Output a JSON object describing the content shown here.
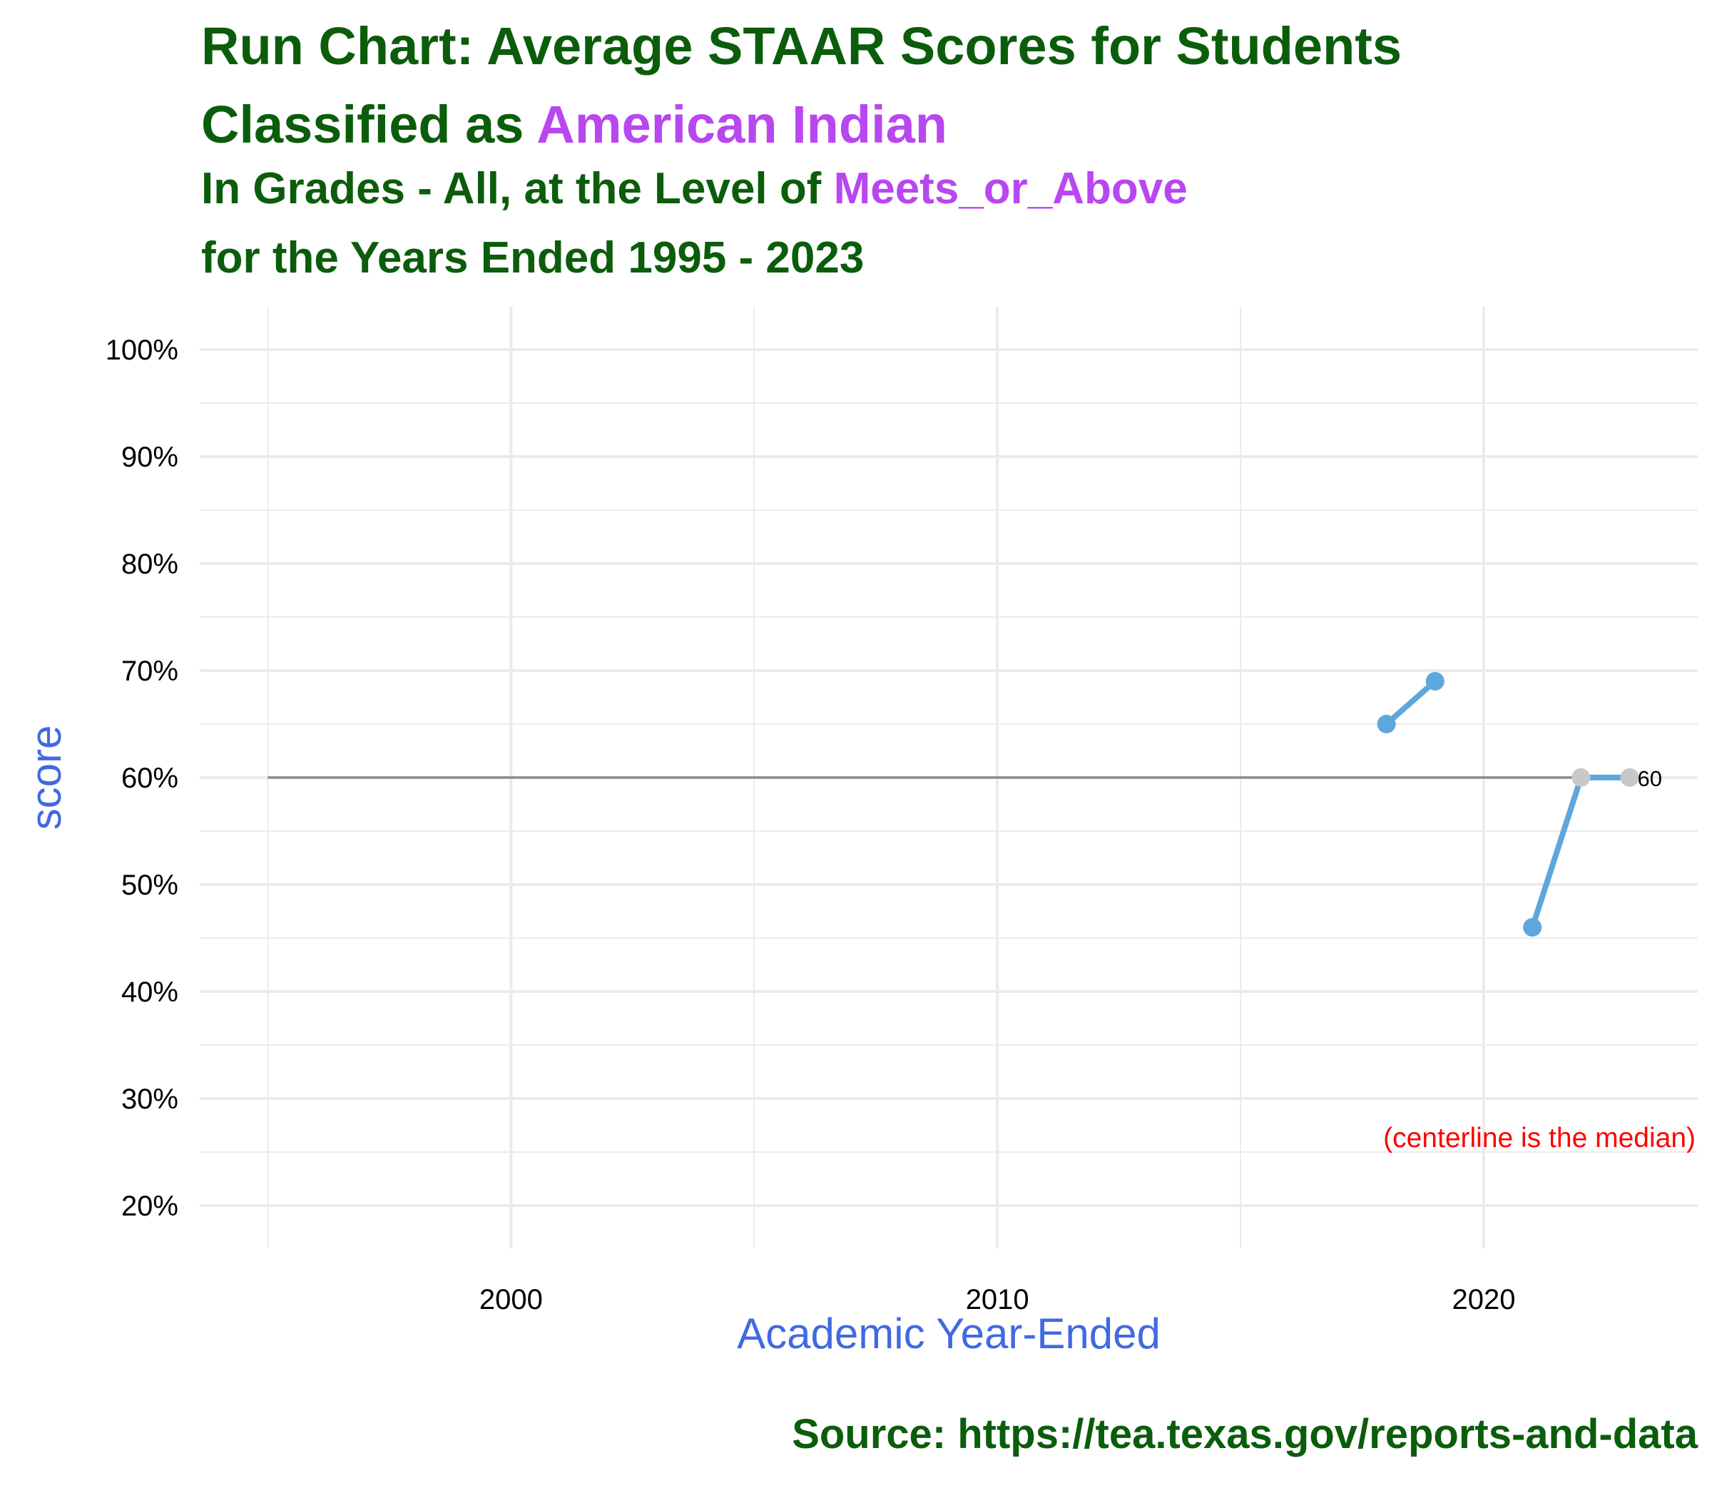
{
  "colors": {
    "title": "#0b5d0b",
    "highlight": "#b847f0",
    "axis_title": "#4169e1",
    "series": "#5ea7dc",
    "centerline_point": "#c8c8c8",
    "centerline": "#8c8c8c",
    "note": "#ff0000",
    "grid": "#ebebeb"
  },
  "chart_data": {
    "type": "line",
    "title": {
      "line1": "Run Chart: Average STAAR Scores for Students",
      "line2_prefix": "Classified as ",
      "line2_highlight": "American Indian"
    },
    "subtitle": {
      "line1_prefix": "In Grades - All, at the Level of ",
      "line1_highlight": "Meets_or_Above",
      "line2": "for the Years Ended 1995 - 2023"
    },
    "xlabel": "Academic Year-Ended",
    "ylabel": "score",
    "caption": "Source:  https://tea.texas.gov/reports-and-data",
    "annotation": "(centerline is the median)",
    "centerline_label": "60",
    "x_ticks": [
      2000,
      2010,
      2020
    ],
    "x_tick_labels": [
      "2000",
      "2010",
      "2020"
    ],
    "y_ticks": [
      20,
      30,
      40,
      50,
      60,
      70,
      80,
      90,
      100
    ],
    "y_tick_labels": [
      "20%",
      "30%",
      "40%",
      "50%",
      "60%",
      "70%",
      "80%",
      "90%",
      "100%"
    ],
    "xlim": [
      1993.6,
      2024.4
    ],
    "ylim": [
      16,
      104
    ],
    "centerline": {
      "x_start": 1995,
      "x_end": 2023,
      "y": 60
    },
    "segments": [
      [
        {
          "x": 2018,
          "y": 65
        },
        {
          "x": 2019,
          "y": 69
        }
      ],
      [
        {
          "x": 2021,
          "y": 46
        },
        {
          "x": 2022,
          "y": 60
        },
        {
          "x": 2023,
          "y": 60
        }
      ]
    ],
    "grid": true
  }
}
